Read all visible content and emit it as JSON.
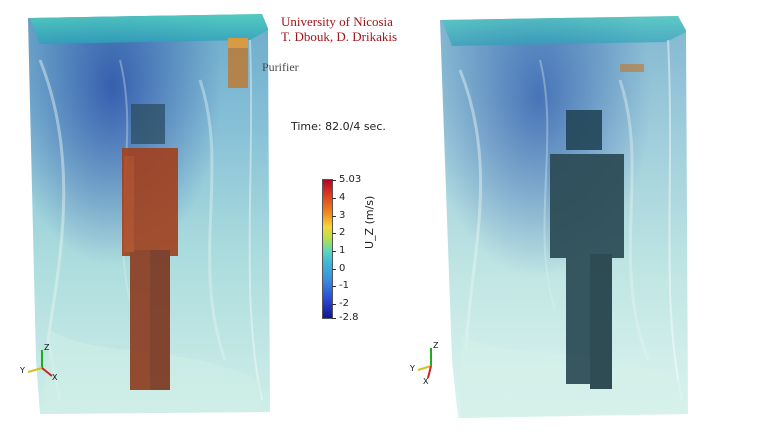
{
  "credit": {
    "institution": "University of Nicosia",
    "authors": "T. Dbouk, D. Drikakis"
  },
  "purifier_label": "Purifier",
  "time_label": "Time: 82.0/4 sec.",
  "colorbar": {
    "title": "U_Z (m/s)",
    "ticks": [
      "5.03",
      "4",
      "3",
      "2",
      "1",
      "0",
      "-1",
      "-2",
      "-2.8"
    ],
    "tick_values": [
      5.03,
      4,
      3,
      2,
      1,
      0,
      -1,
      -2,
      -2.8
    ],
    "min": -2.8,
    "max": 5.03
  },
  "axes_triad": {
    "left": {
      "z": "Z",
      "y": "Y",
      "x": "X"
    },
    "right": {
      "z": "Z",
      "y": "Y",
      "x": "X"
    }
  },
  "colors": {
    "credit": "#a3141c",
    "mannequin_left": "#8b3a1e",
    "mannequin_right": "#2a4a54",
    "fluid_light": "#bfe8e2",
    "fluid_dark": "#2f5fae"
  }
}
